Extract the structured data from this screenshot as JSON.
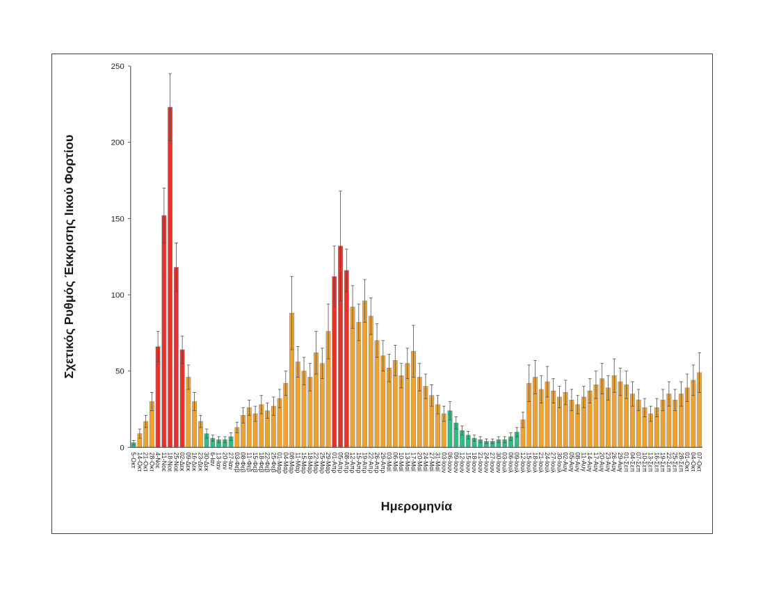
{
  "chart_data": {
    "type": "bar",
    "title": "",
    "ylabel": "Σχετικός Ρυθμός Έκκρισης Ιικού Φορτίου",
    "xlabel": "Ημερομηνία",
    "ylim": [
      0,
      250
    ],
    "y_ticks": [
      0,
      50,
      100,
      150,
      200,
      250
    ],
    "grid": false,
    "legend": "none",
    "error_bars": true,
    "colors": {
      "orange": "#F0A22E",
      "red": "#E73229",
      "green": "#2FBE82",
      "error_bar": "#4d4d4d",
      "bar_outline": "#8c8c8c",
      "axis": "#595959",
      "text": "#1f1f1f",
      "border": "#404040"
    },
    "categories": [
      "5-Οκτ",
      "14-Οκτ",
      "21-Οκτ",
      "28-Οκτ",
      "4-Νοε",
      "11-Νοε",
      "18-Νοε",
      "25-Νοε",
      "02-Δεκ",
      "09-Δεκ",
      "16-Δεκ",
      "23-Δεκ",
      "30-Δεκ",
      "6-Ιαν",
      "13-Ιαν",
      "20-Ιαν",
      "27-Ιαν",
      "03-Φεβ",
      "08-Φεβ",
      "11-Φεβ",
      "15-Φεβ",
      "18-Φεβ",
      "22-Φεβ",
      "25-Φεβ",
      "01-Μαρ",
      "04-Μαρ",
      "08-Μαρ",
      "11-Μαρ",
      "15-Μαρ",
      "18-Μαρ",
      "22-Μαρ",
      "25-Μαρ",
      "29-Μαρ",
      "01-Απρ",
      "05-Απρ",
      "08-Απρ",
      "12-Απρ",
      "15-Απρ",
      "19-Απρ",
      "22-Απρ",
      "26-Απρ",
      "29-Απρ",
      "03-Μαϊ",
      "06-Μαϊ",
      "10-Μαϊ",
      "13-Μαϊ",
      "17-Μαϊ",
      "20-Μαϊ",
      "24-Μαϊ",
      "27-Μαϊ",
      "31-Μαϊ",
      "03-Ιουν",
      "06-Ιουν",
      "09-Ιουν",
      "12-Ιουν",
      "15-Ιουν",
      "18-Ιουν",
      "21-Ιουν",
      "24-Ιουν",
      "27-Ιουν",
      "30-Ιουν",
      "03-Ιουλ",
      "06-Ιουλ",
      "09-Ιουλ",
      "12-Ιουλ",
      "15-Ιουλ",
      "18-Ιουλ",
      "21-Ιουλ",
      "24-Ιουλ",
      "27-Ιουλ",
      "30-Ιουλ",
      "02-Αυγ",
      "05-Αυγ",
      "08-Αυγ",
      "11-Αυγ",
      "14-Αυγ",
      "17-Αυγ",
      "20-Αυγ",
      "23-Αυγ",
      "26-Αυγ",
      "29-Αυγ",
      "01-Σεπ",
      "04-Σεπ",
      "07-Σεπ",
      "10-Σεπ",
      "13-Σεπ",
      "16-Σεπ",
      "19-Σεπ",
      "22-Σεπ",
      "25-Σεπ",
      "28-Σεπ",
      "01-Οκτ",
      "04-Οκτ",
      "07-Οκτ"
    ],
    "values": [
      3,
      9,
      17,
      30,
      66,
      152,
      223,
      118,
      64,
      46,
      30,
      17,
      9,
      6,
      5,
      5,
      7,
      13,
      21,
      26,
      22,
      28,
      24,
      27,
      32,
      42,
      88,
      56,
      50,
      46,
      62,
      55,
      76,
      112,
      132,
      116,
      92,
      82,
      96,
      86,
      70,
      60,
      52,
      57,
      47,
      55,
      63,
      46,
      40,
      34,
      28,
      22,
      24,
      16,
      11,
      8,
      6,
      5,
      4,
      4,
      5,
      5,
      7,
      10,
      18,
      42,
      46,
      38,
      43,
      37,
      33,
      36,
      31,
      28,
      33,
      37,
      41,
      45,
      39,
      47,
      43,
      41,
      35,
      31,
      26,
      22,
      26,
      31,
      35,
      31,
      35,
      39,
      44,
      49
    ],
    "errors": [
      1.5,
      3,
      4,
      6,
      10,
      18,
      22,
      16,
      9,
      8,
      6,
      4,
      3,
      2,
      2,
      2,
      2.5,
      3.5,
      5,
      5,
      5,
      6,
      5,
      6,
      6,
      8,
      24,
      10,
      9,
      9,
      14,
      10,
      18,
      20,
      36,
      14,
      14,
      12,
      14,
      12,
      11,
      10,
      9,
      10,
      8,
      10,
      17,
      9,
      8,
      7,
      6,
      5,
      6,
      4,
      3,
      2.5,
      2,
      2,
      1.5,
      1.5,
      2,
      2,
      2.5,
      3,
      5,
      12,
      11,
      9,
      10,
      8,
      7,
      8,
      7,
      6,
      7,
      8,
      9,
      10,
      8,
      11,
      9,
      9,
      8,
      7,
      6,
      5,
      6,
      7,
      8,
      7,
      8,
      9,
      10,
      13
    ],
    "bar_colors": [
      "green",
      "orange",
      "orange",
      "orange",
      "red",
      "red",
      "red",
      "red",
      "red",
      "orange",
      "orange",
      "orange",
      "green",
      "green",
      "green",
      "green",
      "green",
      "orange",
      "orange",
      "orange",
      "orange",
      "orange",
      "orange",
      "orange",
      "orange",
      "orange",
      "orange",
      "orange",
      "orange",
      "orange",
      "orange",
      "orange",
      "orange",
      "red",
      "red",
      "red",
      "orange",
      "orange",
      "orange",
      "orange",
      "orange",
      "orange",
      "orange",
      "orange",
      "orange",
      "orange",
      "orange",
      "orange",
      "orange",
      "orange",
      "orange",
      "orange",
      "green",
      "green",
      "green",
      "green",
      "green",
      "green",
      "green",
      "green",
      "green",
      "green",
      "green",
      "green",
      "orange",
      "orange",
      "orange",
      "orange",
      "orange",
      "orange",
      "orange",
      "orange",
      "orange",
      "orange",
      "orange",
      "orange",
      "orange",
      "orange",
      "orange",
      "orange",
      "orange",
      "orange",
      "orange",
      "orange",
      "orange",
      "orange",
      "orange",
      "orange",
      "orange",
      "orange",
      "orange",
      "orange",
      "orange",
      "orange"
    ]
  }
}
